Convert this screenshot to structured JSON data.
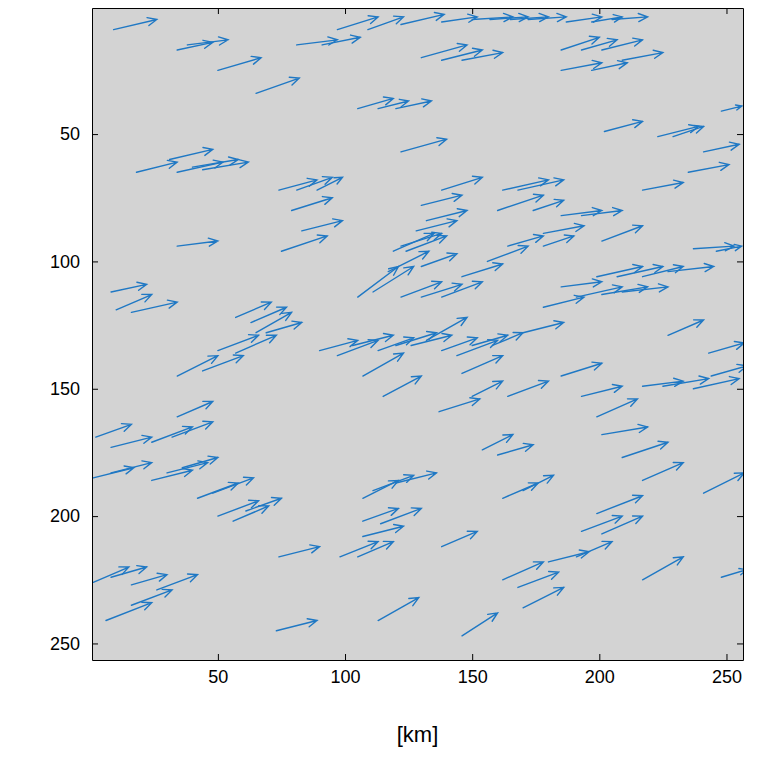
{
  "chart_data": {
    "type": "quiver",
    "x_label": "[km]",
    "color": "#1f78c4",
    "xlim": [
      0.5,
      256.5
    ],
    "ylim": [
      256.5,
      0.5
    ],
    "xticks": [
      50,
      100,
      150,
      200,
      250
    ],
    "yticks": [
      50,
      100,
      150,
      200,
      250
    ],
    "x": [
      9,
      34,
      38,
      50,
      65,
      81,
      91,
      97,
      109,
      122,
      138,
      150,
      157,
      165,
      172,
      187,
      197,
      205,
      185,
      193,
      201,
      185,
      197,
      130,
      138,
      146,
      105,
      113,
      120,
      122,
      209,
      18,
      31,
      34,
      40,
      44,
      74,
      81,
      89,
      79,
      83,
      75,
      34,
      138,
      130,
      132,
      128,
      122,
      162,
      168,
      160,
      174,
      185,
      193,
      201,
      164,
      178,
      202,
      223,
      229,
      217,
      235,
      241,
      248,
      105,
      111,
      117,
      119,
      124,
      122,
      130,
      138,
      146,
      130,
      156,
      178,
      199,
      207,
      217,
      227,
      237,
      246,
      185,
      191,
      201,
      209,
      178,
      170,
      227,
      243,
      8,
      10,
      16,
      57,
      63,
      65,
      69,
      50,
      57,
      90,
      97,
      103,
      107,
      113,
      120,
      126,
      132,
      138,
      144,
      150,
      158,
      146,
      115,
      137,
      150,
      164,
      185,
      193,
      199,
      217,
      225,
      237,
      244,
      34,
      44,
      2,
      8,
      24,
      32,
      1,
      8,
      24,
      30,
      36,
      34,
      42,
      48,
      50,
      56,
      61,
      74,
      98,
      105,
      107,
      107,
      111,
      120,
      107,
      114,
      138,
      154,
      160,
      162,
      170,
      201,
      209,
      217,
      241,
      199,
      193,
      201,
      191,
      180,
      162,
      168,
      170,
      217,
      248,
      1,
      8,
      16,
      26,
      6,
      16,
      73,
      113,
      146
    ],
    "y": [
      9,
      17,
      15,
      25,
      34,
      15,
      15,
      9,
      9,
      7,
      6,
      5,
      5,
      5,
      5,
      6,
      6,
      5,
      17,
      17,
      17,
      25,
      25,
      20,
      21,
      21,
      40,
      40,
      40,
      57,
      21,
      65,
      60,
      65,
      63,
      64,
      72,
      72,
      72,
      80,
      88,
      96,
      94,
      72,
      78,
      84,
      88,
      94,
      72,
      72,
      80,
      80,
      82,
      82,
      92,
      94,
      94,
      49,
      51,
      51,
      72,
      65,
      57,
      41,
      114,
      112,
      104,
      96,
      96,
      114,
      114,
      114,
      106,
      102,
      100,
      89,
      106,
      106,
      106,
      104,
      95,
      96,
      110,
      114,
      113,
      112,
      118,
      128,
      129,
      136,
      112,
      119,
      120,
      122,
      124,
      128,
      128,
      135,
      136,
      135,
      137,
      133,
      145,
      135,
      133,
      133,
      131,
      135,
      137,
      133,
      133,
      144,
      153,
      159,
      153,
      153,
      145,
      153,
      161,
      149,
      149,
      150,
      145,
      145,
      143,
      169,
      173,
      171,
      169,
      185,
      183,
      186,
      183,
      181,
      161,
      193,
      191,
      200,
      202,
      198,
      216,
      216,
      216,
      208,
      193,
      190,
      187,
      202,
      203,
      212,
      174,
      176,
      193,
      190,
      168,
      177,
      186,
      191,
      199,
      206,
      207,
      216,
      218,
      225,
      228,
      236,
      225,
      224,
      226,
      224,
      227,
      229,
      241,
      235,
      245,
      241,
      247
    ],
    "u": [
      17,
      14,
      16,
      17,
      17,
      16,
      15,
      16,
      14,
      17,
      14,
      16,
      15,
      15,
      15,
      14,
      12,
      14,
      15,
      14,
      16,
      16,
      14,
      18,
      16,
      16,
      14,
      12,
      14,
      18,
      16,
      16,
      17,
      18,
      18,
      18,
      15,
      14,
      10,
      16,
      16,
      18,
      16,
      16,
      16,
      16,
      16,
      16,
      18,
      18,
      18,
      12,
      16,
      16,
      16,
      14,
      12,
      15,
      16,
      12,
      16,
      16,
      14,
      8,
      16,
      16,
      16,
      16,
      16,
      16,
      16,
      16,
      16,
      14,
      16,
      16,
      18,
      18,
      16,
      18,
      16,
      10,
      16,
      18,
      18,
      18,
      16,
      16,
      14,
      14,
      14,
      14,
      18,
      14,
      14,
      14,
      14,
      16,
      16,
      15,
      16,
      16,
      16,
      14,
      16,
      16,
      16,
      14,
      16,
      14,
      12,
      16,
      15,
      16,
      12,
      16,
      16,
      16,
      16,
      16,
      18,
      18,
      14,
      16,
      16,
      14,
      16,
      16,
      16,
      16,
      16,
      16,
      16,
      14,
      14,
      16,
      16,
      16,
      14,
      14,
      16,
      15,
      14,
      16,
      14,
      16,
      16,
      14,
      16,
      14,
      12,
      14,
      14,
      12,
      18,
      18,
      16,
      16,
      18,
      16,
      16,
      14,
      16,
      16,
      16,
      16,
      16,
      10,
      14,
      14,
      14,
      16,
      18,
      16,
      16,
      16,
      14
    ],
    "v": [
      -4,
      -3,
      -2,
      -5,
      -6,
      -2,
      -3,
      -5,
      -5,
      -4,
      -2,
      -1,
      -1,
      -1,
      -1,
      -2,
      -2,
      -1,
      -5,
      -4,
      -4,
      -3,
      -3,
      -5,
      -4,
      -3,
      -4,
      -3,
      -3,
      -5,
      -3,
      -4,
      -4,
      -4,
      -3,
      -3,
      -4,
      -5,
      -5,
      -5,
      -4,
      -6,
      -2,
      -5,
      -4,
      -4,
      -4,
      -5,
      -4,
      -4,
      -6,
      -4,
      -2,
      -2,
      -6,
      -4,
      -4,
      -4,
      -4,
      -4,
      -3,
      -3,
      -3,
      -2,
      -12,
      -10,
      -8,
      -7,
      -6,
      -6,
      -5,
      -6,
      -5,
      -5,
      -6,
      -3,
      -4,
      -4,
      -4,
      -2,
      -1,
      -2,
      -2,
      -4,
      -3,
      -2,
      -4,
      -4,
      -6,
      -4,
      -3,
      -6,
      -4,
      -6,
      -6,
      -8,
      -4,
      -6,
      -7,
      -4,
      -6,
      -4,
      -9,
      -5,
      -5,
      -4,
      -9,
      -5,
      -6,
      -4,
      -5,
      -7,
      -8,
      -5,
      -6,
      -6,
      -5,
      -4,
      -7,
      -2,
      -3,
      -4,
      -4,
      -8,
      -6,
      -5,
      -4,
      -6,
      -6,
      -4,
      -4,
      -4,
      -4,
      -4,
      -6,
      -6,
      -6,
      -6,
      -6,
      -5,
      -4,
      -6,
      -6,
      -4,
      -7,
      -6,
      -4,
      -5,
      -6,
      -6,
      -6,
      -4,
      -6,
      -6,
      -3,
      -6,
      -7,
      -8,
      -7,
      -6,
      -7,
      -6,
      -4,
      -7,
      -6,
      -8,
      -9,
      -3,
      -6,
      -4,
      -4,
      -6,
      -7,
      -6,
      -4,
      -9,
      -9
    ]
  }
}
